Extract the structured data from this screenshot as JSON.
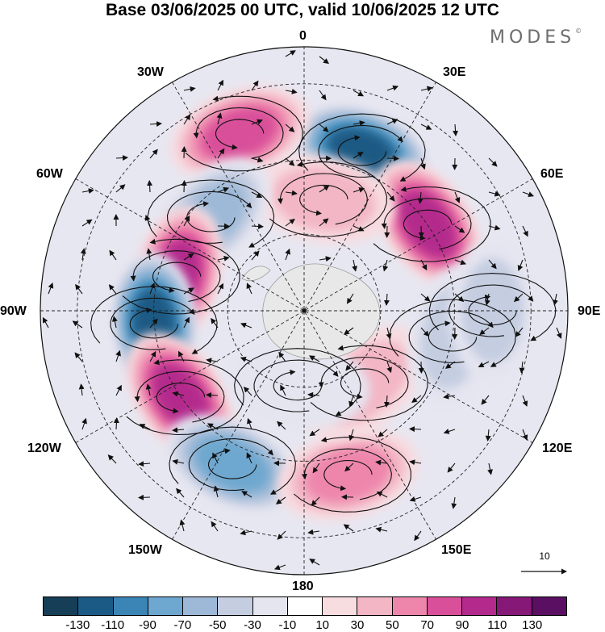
{
  "header": {
    "title": "Base 03/06/2025 00 UTC, valid 10/06/2025 12 UTC",
    "brand": "MODES",
    "brand_mark": "©"
  },
  "map": {
    "projection": "south-polar-stereographic",
    "longitude_labels": {
      "n": "0",
      "ne30": "30E",
      "ne60": "60E",
      "e": "90E",
      "se120": "120E",
      "se150": "150E",
      "s": "180",
      "sw150": "150W",
      "sw120": "120W",
      "w": "90W",
      "nw60": "60W",
      "nw30": "30W"
    },
    "field": "anomaly",
    "anomaly_centers": [
      {
        "lon": "20E",
        "lat": -45,
        "value": -120
      },
      {
        "lon": "55E",
        "lat": -50,
        "value": 105
      },
      {
        "lon": "20W",
        "lat": -40,
        "value": 90
      },
      {
        "lon": "10E",
        "lat": -60,
        "value": 50
      },
      {
        "lon": "45W",
        "lat": -55,
        "value": -70
      },
      {
        "lon": "75W",
        "lat": -55,
        "value": 115
      },
      {
        "lon": "95W",
        "lat": -50,
        "value": -130
      },
      {
        "lon": "125W",
        "lat": -50,
        "value": 110
      },
      {
        "lon": "155W",
        "lat": -45,
        "value": -90
      },
      {
        "lon": "165E",
        "lat": -45,
        "value": 70
      },
      {
        "lon": "140E",
        "lat": -65,
        "value": 40
      },
      {
        "lon": "100E",
        "lat": -50,
        "value": -50
      },
      {
        "lon": "90E",
        "lat": -40,
        "value": -50
      },
      {
        "lon": "175W",
        "lat": -70,
        "value": -30
      }
    ],
    "vector_reference": {
      "label": "10"
    }
  },
  "colorbar": {
    "colors": [
      "#173e57",
      "#1b5a84",
      "#3b85b6",
      "#6ea7cf",
      "#9db9d7",
      "#c5cde1",
      "#e5e5f0",
      "#ffffff",
      "#f7dce0",
      "#f3b6c5",
      "#ee86ac",
      "#d94f9a",
      "#b32a8c",
      "#861877",
      "#5a0f62"
    ],
    "ticks": [
      "-130",
      "-110",
      "-90",
      "-70",
      "-50",
      "-30",
      "-10",
      "10",
      "30",
      "50",
      "70",
      "90",
      "110",
      "130"
    ]
  }
}
